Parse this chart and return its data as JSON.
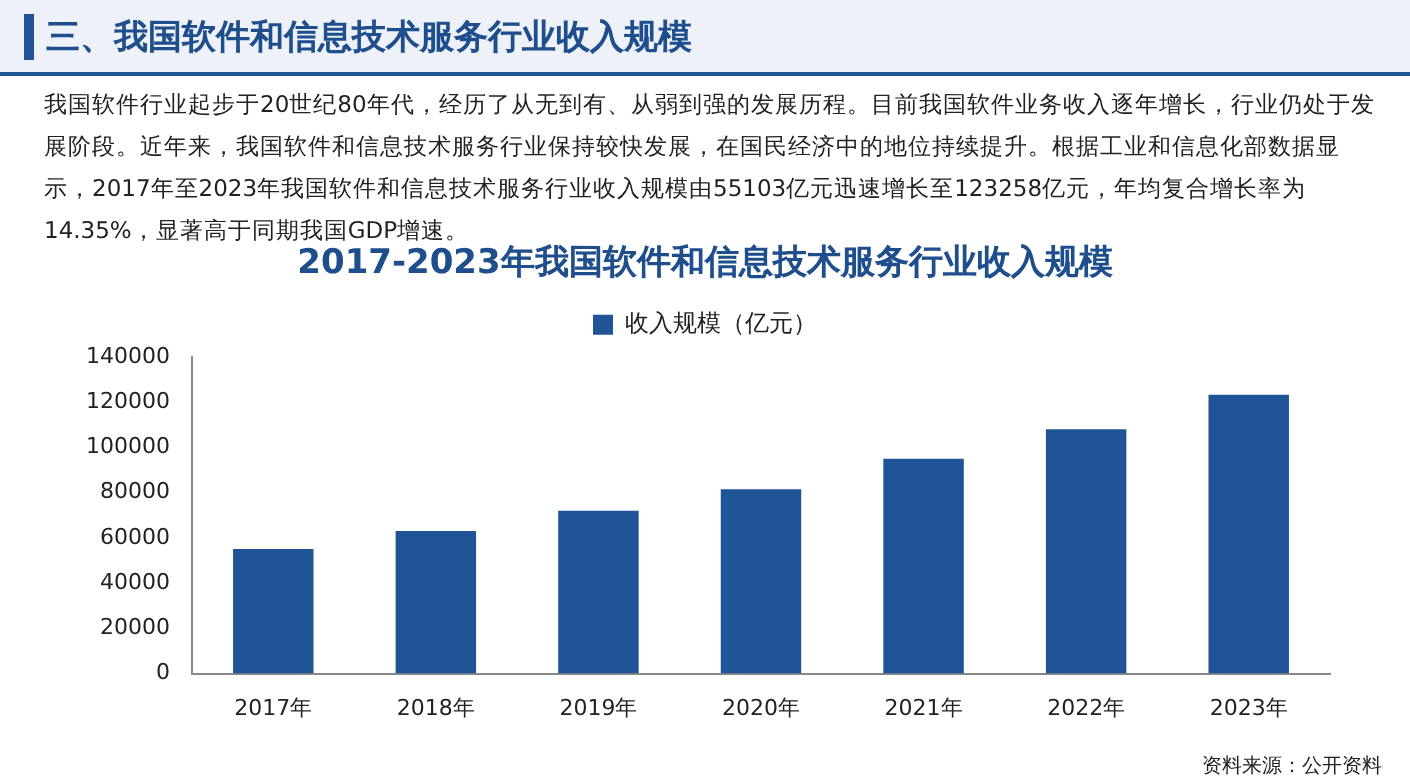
{
  "chart_data": {
    "type": "bar",
    "title": "2017-2023年我国软件和信息技术服务行业收入规模",
    "categories": [
      "2017年",
      "2018年",
      "2019年",
      "2020年",
      "2021年",
      "2022年",
      "2023年"
    ],
    "series": [
      {
        "name": "收入规模（亿元）",
        "color": "#1f5596",
        "values": [
          55103,
          63000,
          72000,
          81500,
          95000,
          108000,
          123258
        ]
      }
    ],
    "ylim": [
      0,
      140000
    ],
    "yticks": [
      0,
      20000,
      40000,
      60000,
      80000,
      100000,
      120000,
      140000
    ],
    "grid": false,
    "legend": "top",
    "annotations": [
      "三、我国软件和信息技术服务行业收入规模",
      "我国软件行业起步于20世纪80年代，经历了从无到有、从弱到强的发展历程。目前我国软件业务收入逐年增长，行业仍处于发展阶段。近年来，我国软件和信息技术服务行业保持较快发展，在国民经济中的地位持续提升。根据工业和信息化部数据显示，2017年至2023年我国软件和信息技术服务行业收入规模由55103亿元迅速增长至123258亿元，年均复合增长率为14.35%，显著高于同期我国GDP增速。",
      "资料来源：公开资料"
    ]
  }
}
